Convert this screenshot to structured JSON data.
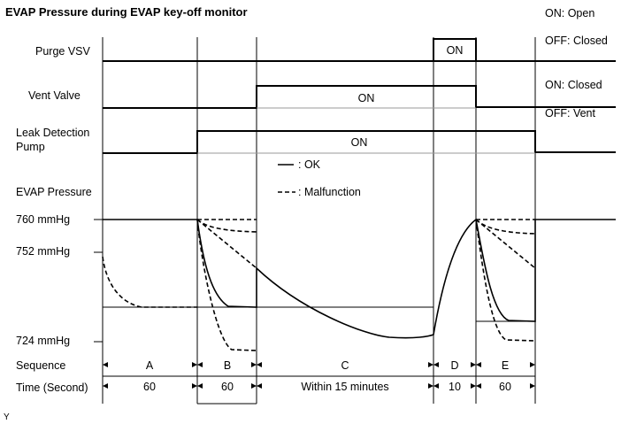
{
  "title": "EVAP Pressure during EVAP key-off monitor",
  "legend_state": {
    "purge_on": "ON: Open",
    "purge_off": "OFF: Closed",
    "vent_on": "ON: Closed",
    "vent_off": "OFF: Vent"
  },
  "signals": {
    "purge_vsv": "Purge VSV",
    "vent_valve": "Vent Valve",
    "pump_line1": "Leak Detection",
    "pump_line2": "Pump",
    "evap_pressure": "EVAP Pressure"
  },
  "on_label": "ON",
  "curve_legend": {
    "ok": ": OK",
    "malfunction": ": Malfunction"
  },
  "pressure_levels": {
    "p760": "760 mmHg",
    "p752": "752 mmHg",
    "p724": "724 mmHg"
  },
  "sequence_label": "Sequence",
  "time_label": "Time (Second)",
  "sequence": [
    {
      "id": "A",
      "time": "60"
    },
    {
      "id": "B",
      "time": "60"
    },
    {
      "id": "C",
      "time": "Within 15 minutes"
    },
    {
      "id": "D",
      "time": "10"
    },
    {
      "id": "E",
      "time": "60"
    }
  ],
  "footer": "Y"
}
